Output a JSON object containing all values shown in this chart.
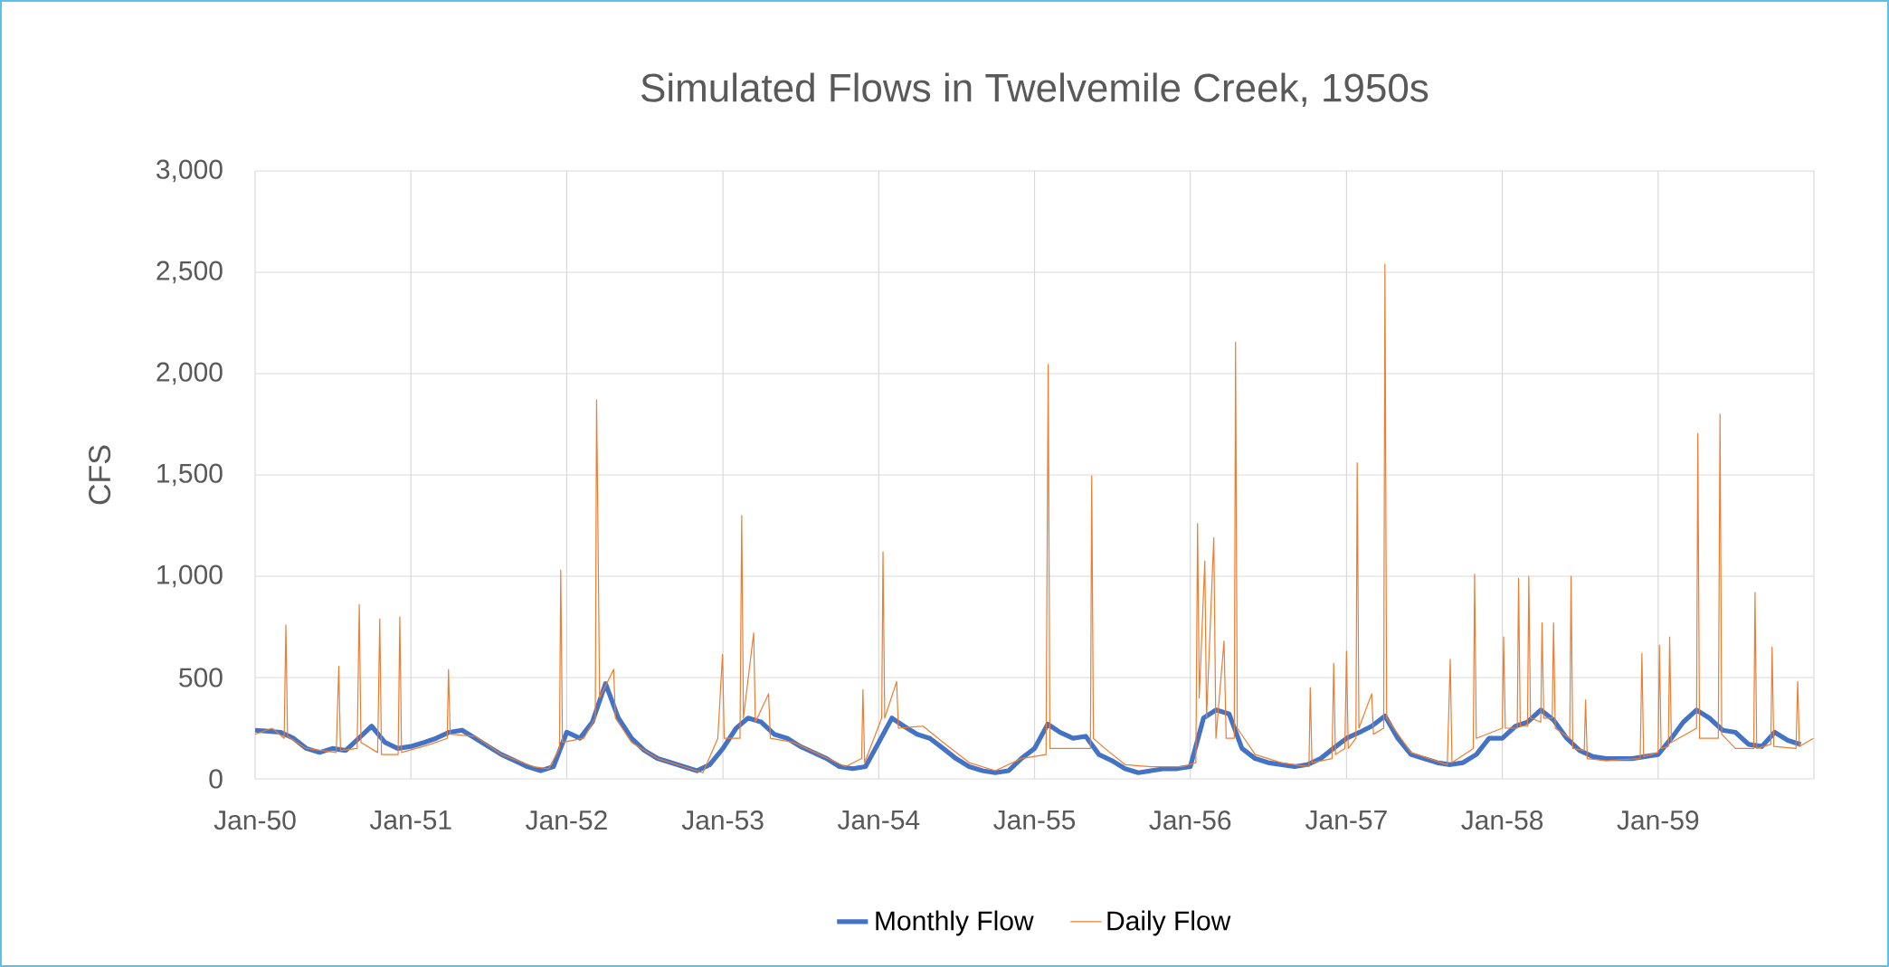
{
  "chart_data": {
    "type": "line",
    "title": "Simulated Flows in Twelvemile Creek, 1950s",
    "ylabel": "CFS",
    "xlim": [
      "1950-01-01",
      "1960-01-01"
    ],
    "xticks": [
      {
        "value": "1950-01-01",
        "label": "Jan-50"
      },
      {
        "value": "1951-01-01",
        "label": "Jan-51"
      },
      {
        "value": "1952-01-01",
        "label": "Jan-52"
      },
      {
        "value": "1953-01-01",
        "label": "Jan-53"
      },
      {
        "value": "1954-01-01",
        "label": "Jan-54"
      },
      {
        "value": "1955-01-01",
        "label": "Jan-55"
      },
      {
        "value": "1956-01-01",
        "label": "Jan-56"
      },
      {
        "value": "1957-01-01",
        "label": "Jan-57"
      },
      {
        "value": "1958-01-01",
        "label": "Jan-58"
      },
      {
        "value": "1959-01-01",
        "label": "Jan-59"
      },
      {
        "value": "1960-01-01",
        "label": null
      }
    ],
    "ylim": [
      0,
      3000
    ],
    "yticks": [
      0,
      500,
      {
        "value": 1000,
        "label": "1,000"
      },
      {
        "value": 1500,
        "label": "1,500"
      },
      {
        "value": 2000,
        "label": "2,000"
      },
      {
        "value": 2500,
        "label": "2,500"
      },
      {
        "value": 3000,
        "label": "3,000"
      }
    ],
    "grid": true,
    "legend": "bottom",
    "marker": "none",
    "series": [
      {
        "name": "Monthly Flow",
        "color": "#4472c4",
        "x": [
          "1950-01",
          "1950-02",
          "1950-03",
          "1950-04",
          "1950-05",
          "1950-06",
          "1950-07",
          "1950-08",
          "1950-09",
          "1950-10",
          "1950-11",
          "1950-12",
          "1951-01",
          "1951-02",
          "1951-03",
          "1951-04",
          "1951-05",
          "1951-06",
          "1951-07",
          "1951-08",
          "1951-09",
          "1951-10",
          "1951-11",
          "1951-12",
          "1952-01",
          "1952-02",
          "1952-03",
          "1952-04",
          "1952-05",
          "1952-06",
          "1952-07",
          "1952-08",
          "1952-09",
          "1952-10",
          "1952-11",
          "1952-12",
          "1953-01",
          "1953-02",
          "1953-03",
          "1953-04",
          "1953-05",
          "1953-06",
          "1953-07",
          "1953-08",
          "1953-09",
          "1953-10",
          "1953-11",
          "1953-12",
          "1954-01",
          "1954-02",
          "1954-03",
          "1954-04",
          "1954-05",
          "1954-06",
          "1954-07",
          "1954-08",
          "1954-09",
          "1954-10",
          "1954-11",
          "1954-12",
          "1955-01",
          "1955-02",
          "1955-03",
          "1955-04",
          "1955-05",
          "1955-06",
          "1955-07",
          "1955-08",
          "1955-09",
          "1955-10",
          "1955-11",
          "1955-12",
          "1956-01",
          "1956-02",
          "1956-03",
          "1956-04",
          "1956-05",
          "1956-06",
          "1956-07",
          "1956-08",
          "1956-09",
          "1956-10",
          "1956-11",
          "1956-12",
          "1957-01",
          "1957-02",
          "1957-03",
          "1957-04",
          "1957-05",
          "1957-06",
          "1957-07",
          "1957-08",
          "1957-09",
          "1957-10",
          "1957-11",
          "1957-12",
          "1958-01",
          "1958-02",
          "1958-03",
          "1958-04",
          "1958-05",
          "1958-06",
          "1958-07",
          "1958-08",
          "1958-09",
          "1958-10",
          "1958-11",
          "1958-12",
          "1959-01",
          "1959-02",
          "1959-03",
          "1959-04",
          "1959-05",
          "1959-06",
          "1959-07",
          "1959-08",
          "1959-09",
          "1959-10",
          "1959-11",
          "1959-12"
        ],
        "values": [
          240,
          235,
          230,
          200,
          150,
          130,
          150,
          140,
          200,
          260,
          180,
          150,
          160,
          180,
          200,
          230,
          240,
          200,
          160,
          120,
          90,
          60,
          40,
          60,
          230,
          200,
          280,
          470,
          300,
          200,
          140,
          100,
          80,
          60,
          40,
          70,
          150,
          250,
          300,
          280,
          220,
          200,
          160,
          130,
          100,
          60,
          50,
          60,
          180,
          300,
          260,
          220,
          200,
          150,
          100,
          60,
          40,
          30,
          40,
          100,
          150,
          270,
          230,
          200,
          210,
          120,
          90,
          50,
          30,
          40,
          50,
          50,
          60,
          300,
          340,
          320,
          150,
          100,
          80,
          70,
          60,
          70,
          100,
          150,
          200,
          230,
          260,
          310,
          200,
          120,
          100,
          80,
          70,
          80,
          120,
          200,
          200,
          260,
          280,
          340,
          290,
          200,
          140,
          110,
          100,
          100,
          100,
          110,
          120,
          200,
          280,
          340,
          300,
          240,
          230,
          170,
          160,
          230,
          190,
          170
        ]
      },
      {
        "name": "Daily Flow",
        "color": "#ed7d31",
        "x": [
          "1950-01-01",
          "1950-02-10",
          "1950-03-10",
          "1950-03-14",
          "1950-03-18",
          "1950-05-01",
          "1950-07-10",
          "1950-07-16",
          "1950-07-20",
          "1950-08-28",
          "1950-09-02",
          "1950-09-06",
          "1950-10-15",
          "1950-10-20",
          "1950-10-24",
          "1950-12-02",
          "1950-12-06",
          "1950-12-10",
          "1951-02-15",
          "1951-03-27",
          "1951-03-30",
          "1951-04-03",
          "1951-06-01",
          "1951-08-01",
          "1951-10-15",
          "1951-11-20",
          "1951-12-15",
          "1951-12-18",
          "1951-12-22",
          "1952-02-10",
          "1952-03-08",
          "1952-03-11",
          "1952-03-14",
          "1952-03-18",
          "1952-04-20",
          "1952-04-24",
          "1952-06-01",
          "1952-08-01",
          "1952-10-01",
          "1952-11-15",
          "1952-12-20",
          "1952-12-31",
          "1953-01-04",
          "1953-02-10",
          "1953-02-14",
          "1953-02-18",
          "1953-03-14",
          "1953-03-18",
          "1953-04-18",
          "1953-04-22",
          "1953-06-15",
          "1953-08-15",
          "1953-10-15",
          "1953-11-22",
          "1953-11-25",
          "1953-11-29",
          "1954-01-08",
          "1954-01-11",
          "1954-01-15",
          "1954-02-12",
          "1954-02-16",
          "1954-04-15",
          "1954-06-01",
          "1954-08-01",
          "1954-10-01",
          "1954-12-01",
          "1955-01-28",
          "1955-02-02",
          "1955-02-06",
          "1955-05-12",
          "1955-05-15",
          "1955-05-19",
          "1955-06-15",
          "1955-08-01",
          "1955-10-01",
          "1955-12-15",
          "1956-01-14",
          "1956-01-18",
          "1956-01-22",
          "1956-02-04",
          "1956-02-08",
          "1956-02-25",
          "1956-03-01",
          "1956-03-20",
          "1956-03-25",
          "1956-04-13",
          "1956-04-16",
          "1956-04-20",
          "1956-06-01",
          "1956-08-01",
          "1956-10-05",
          "1956-10-08",
          "1956-10-12",
          "1956-11-28",
          "1956-12-02",
          "1956-12-06",
          "1956-12-28",
          "1957-01-01",
          "1957-01-05",
          "1957-01-23",
          "1957-01-26",
          "1957-01-30",
          "1957-03-01",
          "1957-03-05",
          "1957-03-29",
          "1957-04-01",
          "1957-04-05",
          "1957-06-01",
          "1957-08-25",
          "1957-09-01",
          "1957-09-05",
          "1957-10-25",
          "1957-10-28",
          "1957-11-01",
          "1958-01-01",
          "1958-01-04",
          "1958-01-08",
          "1958-02-05",
          "1958-02-08",
          "1958-02-12",
          "1958-03-01",
          "1958-03-04",
          "1958-03-08",
          "1958-04-01",
          "1958-04-04",
          "1958-04-08",
          "1958-04-28",
          "1958-05-01",
          "1958-05-05",
          "1958-06-08",
          "1958-06-11",
          "1958-06-15",
          "1958-07-12",
          "1958-07-15",
          "1958-07-19",
          "1958-09-01",
          "1958-11-20",
          "1958-11-24",
          "1958-11-28",
          "1959-01-01",
          "1959-01-04",
          "1959-01-08",
          "1959-01-25",
          "1959-01-28",
          "1959-02-01",
          "1959-04-01",
          "1959-04-04",
          "1959-04-08",
          "1959-05-22",
          "1959-05-26",
          "1959-05-30",
          "1959-07-01",
          "1959-08-13",
          "1959-08-16",
          "1959-08-20",
          "1959-09-22",
          "1959-09-25",
          "1959-09-29",
          "1959-11-20",
          "1959-11-24",
          "1959-11-28",
          "1959-12-31"
        ],
        "values": [
          220,
          250,
          200,
          760,
          210,
          150,
          130,
          555,
          140,
          150,
          860,
          180,
          130,
          790,
          120,
          120,
          800,
          130,
          170,
          200,
          540,
          220,
          210,
          120,
          60,
          50,
          150,
          1030,
          180,
          200,
          300,
          1870,
          1280,
          400,
          540,
          300,
          180,
          100,
          60,
          30,
          200,
          615,
          200,
          200,
          1300,
          300,
          720,
          280,
          420,
          200,
          180,
          120,
          60,
          100,
          440,
          80,
          300,
          1120,
          300,
          480,
          250,
          260,
          180,
          80,
          40,
          100,
          120,
          2045,
          150,
          150,
          1495,
          200,
          150,
          70,
          60,
          60,
          80,
          1260,
          400,
          1075,
          300,
          1190,
          200,
          680,
          200,
          200,
          2155,
          250,
          120,
          80,
          60,
          450,
          80,
          100,
          570,
          120,
          150,
          630,
          150,
          200,
          1560,
          250,
          420,
          220,
          250,
          2540,
          300,
          130,
          70,
          590,
          80,
          150,
          1010,
          200,
          250,
          700,
          250,
          250,
          990,
          260,
          260,
          1000,
          300,
          280,
          770,
          300,
          300,
          770,
          250,
          200,
          1000,
          150,
          140,
          390,
          100,
          90,
          100,
          620,
          110,
          130,
          660,
          150,
          160,
          700,
          180,
          250,
          1705,
          200,
          200,
          1800,
          220,
          150,
          150,
          920,
          150,
          170,
          650,
          160,
          150,
          480,
          160,
          200
        ]
      }
    ]
  }
}
